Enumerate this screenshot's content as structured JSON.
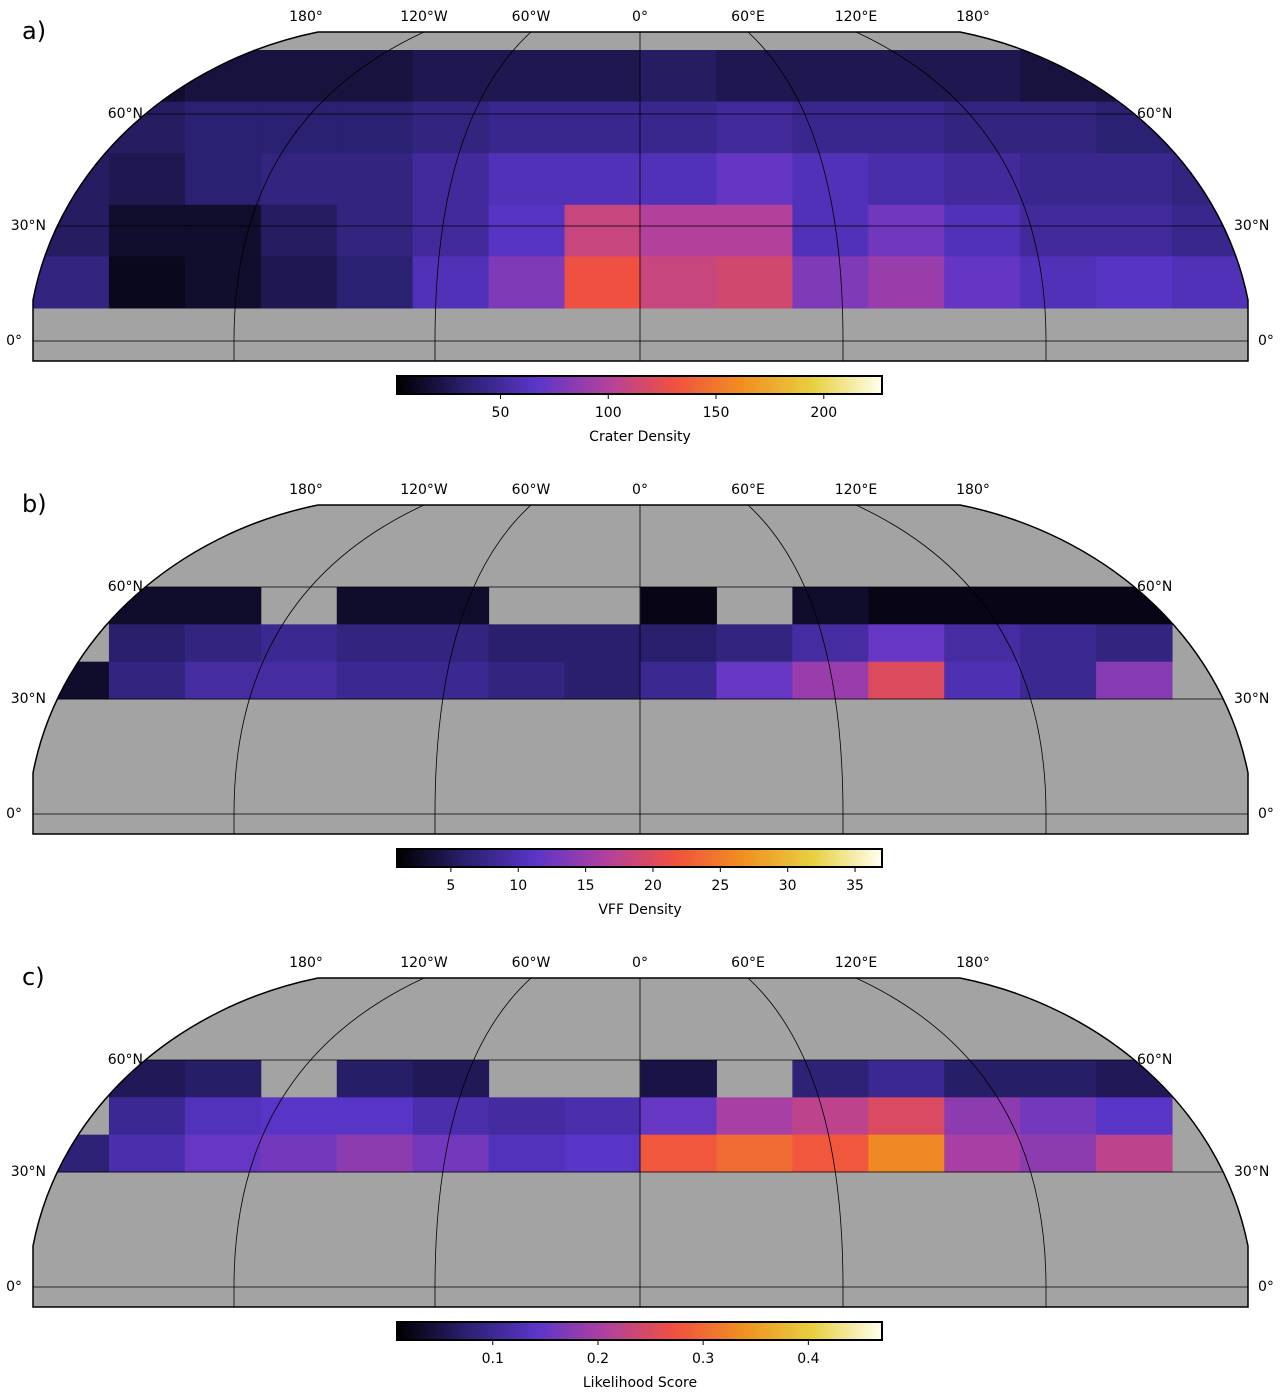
{
  "colormap": [
    "#000000",
    "#2a2070",
    "#5a35c8",
    "#b040a0",
    "#f05040",
    "#f09020",
    "#e8d040",
    "#fffff0"
  ],
  "panels": [
    {
      "label": "a)",
      "longitude_labels": [
        "180°",
        "120°W",
        "60°W",
        "0°",
        "60°E",
        "120°E",
        "180°"
      ],
      "latitude_labels": [
        "60°N",
        "30°N",
        "0°"
      ],
      "colorbar": {
        "label": "Crater Density",
        "range": [
          2,
          227
        ],
        "ticks": [
          50,
          100,
          150,
          200
        ]
      },
      "grid_values": [
        [
          15,
          15,
          20,
          20,
          20,
          25,
          25,
          25,
          30,
          25,
          25,
          25,
          25,
          20,
          20,
          15
        ],
        [
          30,
          30,
          35,
          35,
          35,
          40,
          45,
          45,
          45,
          50,
          45,
          45,
          40,
          40,
          35,
          35
        ],
        [
          30,
          25,
          35,
          40,
          40,
          50,
          60,
          60,
          60,
          70,
          60,
          55,
          50,
          45,
          45,
          40
        ],
        [
          30,
          15,
          15,
          30,
          40,
          50,
          65,
          110,
          100,
          100,
          60,
          75,
          60,
          50,
          50,
          45
        ],
        [
          40,
          10,
          15,
          25,
          35,
          60,
          80,
          130,
          110,
          115,
          80,
          90,
          70,
          60,
          65,
          60
        ]
      ]
    },
    {
      "label": "b)",
      "longitude_labels": [
        "180°",
        "120°W",
        "60°W",
        "0°",
        "60°E",
        "120°E",
        "180°"
      ],
      "latitude_labels": [
        "60°N",
        "30°N",
        "0°"
      ],
      "colorbar": {
        "label": "VFF Density",
        "range": [
          1,
          37
        ],
        "ticks": [
          5,
          10,
          15,
          20,
          25,
          30,
          35
        ]
      },
      "grid_values": [
        [
          null,
          3,
          3,
          null,
          3,
          3,
          null,
          null,
          2,
          null,
          3,
          2,
          2,
          2,
          2,
          null
        ],
        [
          null,
          6,
          7,
          8,
          7,
          7,
          6,
          6,
          6,
          7,
          9,
          12,
          9,
          8,
          7,
          null
        ],
        [
          3,
          7,
          9,
          9,
          8,
          8,
          7,
          6,
          8,
          12,
          15,
          20,
          10,
          8,
          14,
          null
        ]
      ]
    },
    {
      "label": "c)",
      "longitude_labels": [
        "180°",
        "120°W",
        "60°W",
        "0°",
        "60°E",
        "120°E",
        "180°"
      ],
      "latitude_labels": [
        "60°N",
        "30°N",
        "0°"
      ],
      "colorbar": {
        "label": "Likelihood Score",
        "range": [
          0.009,
          0.47
        ],
        "ticks": [
          0.1,
          0.2,
          0.3,
          0.4
        ]
      },
      "grid_values": [
        [
          null,
          0.06,
          0.07,
          null,
          0.07,
          0.06,
          null,
          null,
          0.05,
          null,
          0.08,
          0.1,
          0.07,
          0.07,
          0.06,
          null
        ],
        [
          null,
          0.1,
          0.13,
          0.14,
          0.14,
          0.12,
          0.11,
          0.12,
          0.15,
          0.2,
          0.22,
          0.25,
          0.18,
          0.16,
          0.14,
          null
        ],
        [
          0.08,
          0.12,
          0.15,
          0.16,
          0.18,
          0.16,
          0.13,
          0.14,
          0.28,
          0.3,
          0.28,
          0.33,
          0.2,
          0.18,
          0.22,
          null
        ]
      ]
    }
  ]
}
